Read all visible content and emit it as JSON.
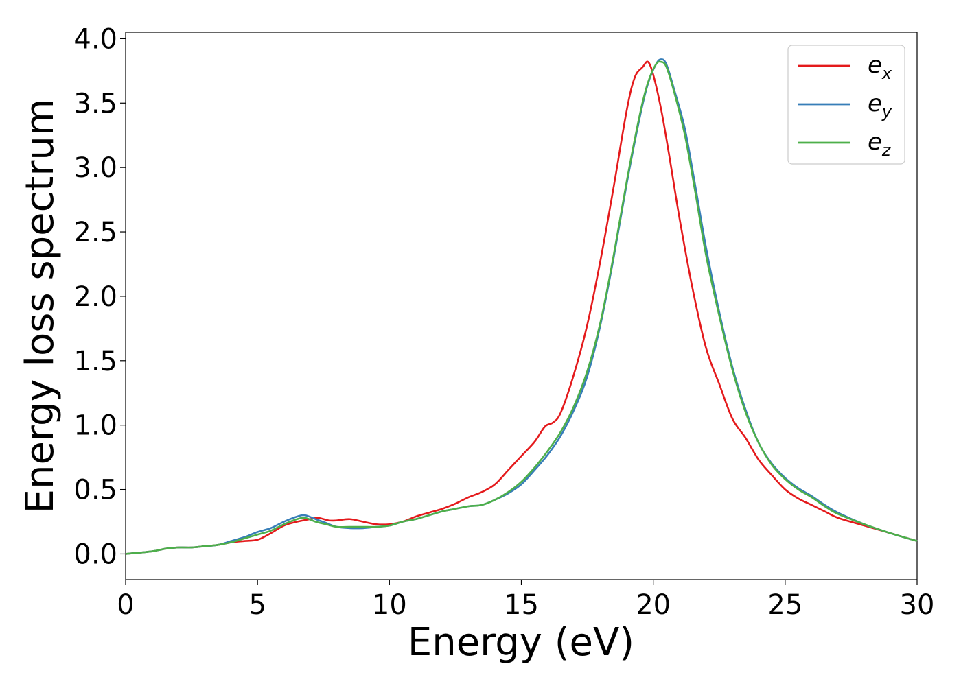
{
  "chart_data": {
    "type": "line",
    "title": "",
    "xlabel": "Energy (eV)",
    "ylabel": "Energy loss spectrum",
    "xlim": [
      0,
      30
    ],
    "ylim": [
      -0.2,
      4.05
    ],
    "xticks": [
      0,
      5,
      10,
      15,
      20,
      25,
      30
    ],
    "xtick_labels": [
      "0",
      "5",
      "10",
      "15",
      "20",
      "25",
      "30"
    ],
    "yticks": [
      0.0,
      0.5,
      1.0,
      1.5,
      2.0,
      2.5,
      3.0,
      3.5,
      4.0
    ],
    "ytick_labels": [
      "0.0",
      "0.5",
      "1.0",
      "1.5",
      "2.0",
      "2.5",
      "3.0",
      "3.5",
      "4.0"
    ],
    "grid": false,
    "legend_position": "top-right",
    "series": [
      {
        "name": "e",
        "subscript": "x",
        "color": "#e41a1c",
        "x": [
          0,
          1,
          1.5,
          2,
          2.5,
          3,
          3.5,
          4,
          4.5,
          5,
          5.5,
          6,
          6.5,
          7,
          7.3,
          7.7,
          8,
          8.5,
          9,
          9.5,
          10,
          10.5,
          11,
          11.5,
          12,
          12.5,
          13,
          13.5,
          14,
          14.5,
          15,
          15.5,
          15.9,
          16.2,
          16.5,
          17,
          17.5,
          18,
          18.5,
          19,
          19.3,
          19.6,
          19.8,
          20,
          20.3,
          20.6,
          21,
          21.5,
          22,
          22.5,
          23,
          23.5,
          24,
          24.5,
          25,
          25.5,
          26,
          26.5,
          27,
          28,
          29,
          30
        ],
        "y": [
          0.0,
          0.02,
          0.04,
          0.05,
          0.05,
          0.06,
          0.07,
          0.09,
          0.1,
          0.11,
          0.16,
          0.22,
          0.25,
          0.27,
          0.28,
          0.26,
          0.26,
          0.27,
          0.25,
          0.23,
          0.23,
          0.25,
          0.29,
          0.32,
          0.35,
          0.39,
          0.44,
          0.48,
          0.54,
          0.65,
          0.76,
          0.87,
          0.99,
          1.02,
          1.1,
          1.4,
          1.78,
          2.28,
          2.85,
          3.45,
          3.7,
          3.78,
          3.82,
          3.72,
          3.45,
          3.1,
          2.6,
          2.05,
          1.6,
          1.32,
          1.05,
          0.9,
          0.73,
          0.61,
          0.5,
          0.43,
          0.38,
          0.33,
          0.28,
          0.22,
          0.16,
          0.1
        ]
      },
      {
        "name": "e",
        "subscript": "y",
        "color": "#377eb8",
        "x": [
          0,
          1,
          1.5,
          2,
          2.5,
          3,
          3.5,
          4,
          4.5,
          5,
          5.5,
          6,
          6.5,
          6.8,
          7.2,
          7.6,
          8,
          8.5,
          9,
          9.5,
          10,
          10.5,
          11,
          11.5,
          12,
          12.5,
          13,
          13.5,
          14,
          14.5,
          15,
          15.5,
          16,
          16.5,
          17,
          17.5,
          18,
          18.5,
          19,
          19.5,
          19.8,
          20.1,
          20.3,
          20.5,
          20.8,
          21.2,
          21.6,
          22,
          22.5,
          23,
          23.5,
          24,
          24.5,
          25,
          25.5,
          26,
          26.5,
          27,
          28,
          29,
          30
        ],
        "y": [
          0.0,
          0.02,
          0.04,
          0.05,
          0.05,
          0.06,
          0.07,
          0.1,
          0.13,
          0.17,
          0.2,
          0.25,
          0.29,
          0.3,
          0.27,
          0.24,
          0.21,
          0.2,
          0.2,
          0.21,
          0.22,
          0.25,
          0.27,
          0.3,
          0.33,
          0.35,
          0.37,
          0.38,
          0.42,
          0.47,
          0.54,
          0.65,
          0.77,
          0.92,
          1.12,
          1.38,
          1.78,
          2.3,
          2.88,
          3.4,
          3.65,
          3.8,
          3.84,
          3.8,
          3.6,
          3.3,
          2.85,
          2.38,
          1.88,
          1.45,
          1.12,
          0.86,
          0.7,
          0.59,
          0.51,
          0.45,
          0.38,
          0.32,
          0.23,
          0.16,
          0.1
        ]
      },
      {
        "name": "e",
        "subscript": "z",
        "color": "#4daf4a",
        "x": [
          0,
          1,
          1.5,
          2,
          2.5,
          3,
          3.5,
          4,
          4.5,
          5,
          5.5,
          6,
          6.5,
          6.8,
          7.2,
          7.6,
          8,
          8.5,
          9,
          9.5,
          10,
          10.5,
          11,
          11.5,
          12,
          12.5,
          13,
          13.5,
          14,
          14.5,
          15,
          15.5,
          16,
          16.5,
          17,
          17.5,
          18,
          18.5,
          19,
          19.5,
          19.8,
          20.1,
          20.3,
          20.5,
          20.8,
          21.2,
          21.6,
          22,
          22.5,
          23,
          23.5,
          24,
          24.5,
          25,
          25.5,
          26,
          26.5,
          27,
          28,
          29,
          30
        ],
        "y": [
          0.0,
          0.02,
          0.04,
          0.05,
          0.05,
          0.06,
          0.07,
          0.09,
          0.12,
          0.15,
          0.18,
          0.23,
          0.27,
          0.28,
          0.25,
          0.23,
          0.21,
          0.21,
          0.21,
          0.21,
          0.22,
          0.25,
          0.27,
          0.3,
          0.33,
          0.35,
          0.37,
          0.38,
          0.42,
          0.48,
          0.56,
          0.67,
          0.8,
          0.95,
          1.15,
          1.42,
          1.8,
          2.32,
          2.9,
          3.42,
          3.66,
          3.8,
          3.82,
          3.78,
          3.58,
          3.25,
          2.8,
          2.32,
          1.85,
          1.43,
          1.1,
          0.86,
          0.69,
          0.58,
          0.5,
          0.44,
          0.37,
          0.31,
          0.23,
          0.16,
          0.1
        ]
      }
    ]
  }
}
